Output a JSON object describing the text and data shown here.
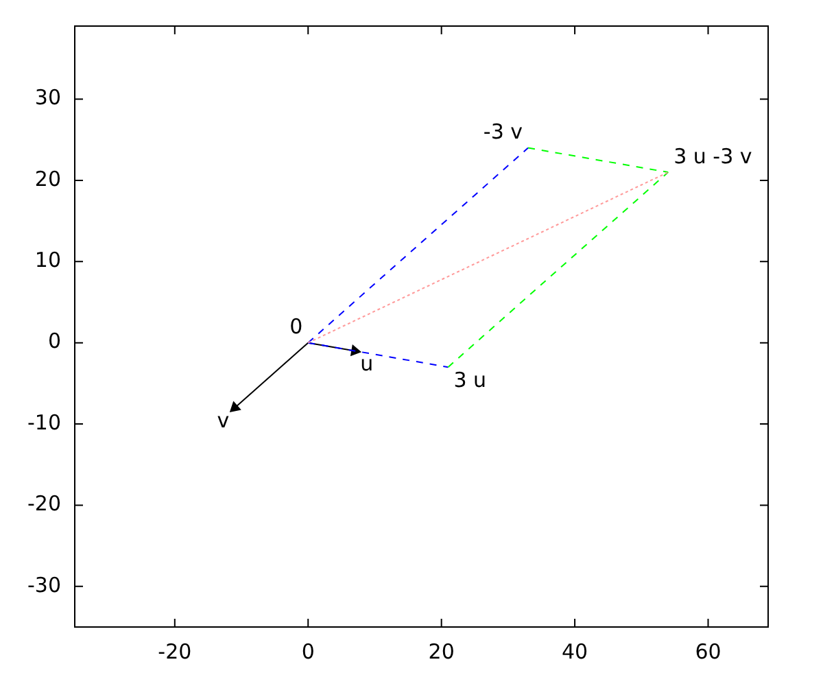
{
  "chart_data": {
    "type": "line",
    "xlim": [
      -35,
      69
    ],
    "ylim": [
      -35,
      39
    ],
    "xticks": [
      -20,
      0,
      20,
      40,
      60
    ],
    "yticks": [
      -30,
      -20,
      -10,
      0,
      10,
      20,
      30
    ],
    "grid": false,
    "legend": false,
    "marker": "none",
    "series": [
      {
        "color": "#000000",
        "line_style": "solid",
        "marker": "triangle",
        "x": [
          0,
          7
        ],
        "values": [
          0,
          -1
        ]
      },
      {
        "color": "#000000",
        "line_style": "solid",
        "marker": "triangle",
        "x": [
          0,
          -11
        ],
        "values": [
          0,
          -8
        ]
      },
      {
        "color": "#0000ff",
        "line_style": "dashed",
        "x": [
          0,
          21
        ],
        "values": [
          0,
          -3
        ]
      },
      {
        "color": "#0000ff",
        "line_style": "dashed",
        "x": [
          0,
          33
        ],
        "values": [
          0,
          24
        ]
      },
      {
        "color": "#00ff00",
        "line_style": "dashed",
        "x": [
          21,
          54
        ],
        "values": [
          -3,
          21
        ]
      },
      {
        "color": "#00ff00",
        "line_style": "dashed",
        "x": [
          33,
          54
        ],
        "values": [
          24,
          21
        ]
      },
      {
        "color": "#ff9999",
        "line_style": "dotted",
        "x": [
          0,
          54
        ],
        "values": [
          0,
          21
        ]
      }
    ],
    "annotations": [
      {
        "text": "0",
        "x": 0,
        "y": 0
      },
      {
        "text": "u",
        "x": 7,
        "y": -1
      },
      {
        "text": "v",
        "x": -11,
        "y": -8
      },
      {
        "text": "3 u",
        "x": 21,
        "y": -3
      },
      {
        "text": "-3 v",
        "x": 33,
        "y": 24
      },
      {
        "text": "3 u -3 v",
        "x": 54,
        "y": 21
      }
    ]
  }
}
